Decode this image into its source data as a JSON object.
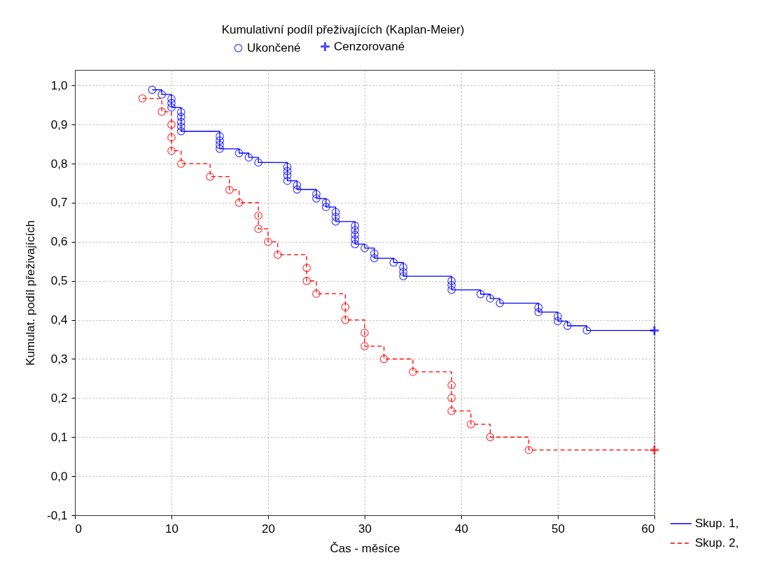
{
  "chart_data": {
    "type": "step",
    "title": "Kumulativní podíl přeživajících (Kaplan-Meier)",
    "xlabel": "Čas - měsíce",
    "ylabel": "Kumulat. podíl přeživajících",
    "xlim": [
      0,
      60
    ],
    "xticks": [
      0,
      10,
      20,
      30,
      40,
      50,
      60
    ],
    "ylim": [
      -0.1,
      1.04
    ],
    "yticks": [
      {
        "value": -0.1,
        "label": "-0,1"
      },
      {
        "value": 0,
        "label": "0,0"
      },
      {
        "value": 0.1,
        "label": "0,1"
      },
      {
        "value": 0.2,
        "label": "0,2"
      },
      {
        "value": 0.3,
        "label": "0,3"
      },
      {
        "value": 0.4,
        "label": "0,4"
      },
      {
        "value": 0.5,
        "label": "0,5"
      },
      {
        "value": 0.6,
        "label": "0,6"
      },
      {
        "value": 0.7,
        "label": "0,7"
      },
      {
        "value": 0.8,
        "label": "0,8"
      },
      {
        "value": 0.9,
        "label": "0,9"
      },
      {
        "value": 1,
        "label": "1,0"
      }
    ],
    "grid": true,
    "legend": "bottom right",
    "series": [
      {
        "name": "Skup. 1,",
        "color": "#0000ff",
        "line_style": "solid",
        "x": [
          8,
          9,
          10,
          10,
          10,
          11,
          11,
          11,
          11,
          11,
          15,
          15,
          15,
          15,
          17,
          18,
          19,
          22,
          22,
          22,
          22,
          23,
          23,
          25,
          25,
          26,
          26,
          27,
          27,
          27,
          29,
          29,
          29,
          29,
          29,
          30,
          31,
          31,
          33,
          34,
          34,
          34,
          39,
          39,
          39,
          42,
          43,
          44,
          48,
          48,
          50,
          50,
          51,
          53,
          60
        ],
        "values": [
          0.989,
          0.977,
          0.966,
          0.955,
          0.944,
          0.932,
          0.92,
          0.907,
          0.895,
          0.883,
          0.87,
          0.859,
          0.848,
          0.838,
          0.827,
          0.816,
          0.803,
          0.792,
          0.781,
          0.77,
          0.756,
          0.745,
          0.734,
          0.722,
          0.711,
          0.7,
          0.689,
          0.676,
          0.664,
          0.652,
          0.641,
          0.63,
          0.618,
          0.606,
          0.594,
          0.584,
          0.57,
          0.558,
          0.547,
          0.535,
          0.523,
          0.512,
          0.5,
          0.489,
          0.477,
          0.466,
          0.455,
          0.443,
          0.432,
          0.42,
          0.409,
          0.397,
          0.385,
          0.373,
          0.373
        ]
      },
      {
        "name": "Skup. 2,",
        "color": "#ff0000",
        "line_style": "dashed",
        "x": [
          7,
          9,
          10,
          10,
          10,
          11,
          14,
          16,
          17,
          19,
          19,
          20,
          21,
          24,
          24,
          25,
          28,
          28,
          30,
          30,
          32,
          35,
          39,
          39,
          39,
          41,
          43,
          47,
          60
        ],
        "values": [
          0.967,
          0.933,
          0.9,
          0.867,
          0.833,
          0.8,
          0.767,
          0.733,
          0.7,
          0.667,
          0.633,
          0.6,
          0.567,
          0.533,
          0.5,
          0.467,
          0.433,
          0.4,
          0.367,
          0.333,
          0.3,
          0.267,
          0.233,
          0.2,
          0.167,
          0.133,
          0.1,
          0.067,
          0.067
        ]
      },
      {
        "name": "Ukončené",
        "type": "scatter",
        "marker": "circle",
        "color": "#0000ff",
        "x": [
          8,
          9,
          10,
          10,
          10,
          11,
          11,
          11,
          11,
          11,
          15,
          15,
          15,
          15,
          17,
          18,
          19,
          22,
          22,
          22,
          22,
          23,
          23,
          25,
          25,
          26,
          26,
          27,
          27,
          27,
          29,
          29,
          29,
          29,
          29,
          30,
          31,
          31,
          33,
          34,
          34,
          34,
          39,
          39,
          39,
          42,
          43,
          44,
          48,
          48,
          50,
          50,
          51,
          53
        ],
        "values": [
          0.989,
          0.977,
          0.966,
          0.955,
          0.944,
          0.932,
          0.92,
          0.907,
          0.895,
          0.883,
          0.87,
          0.859,
          0.848,
          0.838,
          0.827,
          0.816,
          0.803,
          0.792,
          0.781,
          0.77,
          0.756,
          0.745,
          0.734,
          0.722,
          0.711,
          0.7,
          0.689,
          0.676,
          0.664,
          0.652,
          0.641,
          0.63,
          0.618,
          0.606,
          0.594,
          0.584,
          0.57,
          0.558,
          0.547,
          0.535,
          0.523,
          0.512,
          0.5,
          0.489,
          0.477,
          0.466,
          0.455,
          0.443,
          0.432,
          0.42,
          0.409,
          0.397,
          0.385,
          0.373
        ]
      },
      {
        "type": "scatter",
        "marker": "circle",
        "color": "#ff0000",
        "x": [
          7,
          9,
          10,
          10,
          10,
          11,
          14,
          16,
          17,
          19,
          19,
          20,
          21,
          24,
          24,
          25,
          28,
          28,
          30,
          30,
          32,
          35,
          39,
          39,
          39,
          41,
          43,
          47
        ],
        "values": [
          0.967,
          0.933,
          0.9,
          0.867,
          0.833,
          0.8,
          0.767,
          0.733,
          0.7,
          0.667,
          0.633,
          0.6,
          0.567,
          0.533,
          0.5,
          0.467,
          0.433,
          0.4,
          0.367,
          0.333,
          0.3,
          0.267,
          0.233,
          0.2,
          0.167,
          0.133,
          0.1,
          0.067
        ]
      },
      {
        "name": "Cenzorované",
        "type": "scatter",
        "marker": "cross",
        "color": "#0000ff",
        "x": [
          60
        ],
        "values": [
          0.373
        ]
      },
      {
        "type": "scatter",
        "marker": "cross",
        "color": "#ff0000",
        "x": [
          60
        ],
        "values": [
          0.067
        ]
      }
    ]
  }
}
